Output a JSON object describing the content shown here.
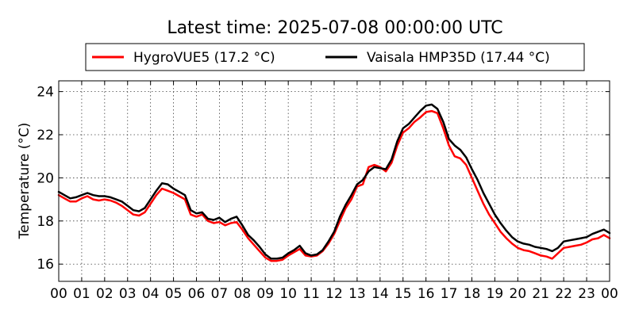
{
  "chart_data": {
    "type": "line",
    "title": "Latest time: 2025-07-08 00:00:00 UTC",
    "xlabel": "",
    "ylabel": "Temperature (°C)",
    "xlim": [
      0,
      24
    ],
    "ylim": [
      15.2,
      24.5
    ],
    "grid": true,
    "legend_position": "top-center",
    "x_ticks": [
      0,
      1,
      2,
      3,
      4,
      5,
      6,
      7,
      8,
      9,
      10,
      11,
      12,
      13,
      14,
      15,
      16,
      17,
      18,
      19,
      20,
      21,
      22,
      23,
      24
    ],
    "x_tick_labels": [
      "00",
      "01",
      "02",
      "03",
      "04",
      "05",
      "06",
      "07",
      "08",
      "09",
      "10",
      "11",
      "12",
      "13",
      "14",
      "15",
      "16",
      "17",
      "18",
      "19",
      "20",
      "21",
      "22",
      "23",
      "00"
    ],
    "y_ticks": [
      16,
      18,
      20,
      22,
      24
    ],
    "y_tick_labels": [
      "16",
      "18",
      "20",
      "22",
      "24"
    ],
    "x": [
      0,
      0.25,
      0.5,
      0.75,
      1,
      1.25,
      1.5,
      1.75,
      2,
      2.25,
      2.5,
      2.75,
      3,
      3.25,
      3.5,
      3.75,
      4,
      4.25,
      4.5,
      4.75,
      5,
      5.25,
      5.5,
      5.75,
      6,
      6.25,
      6.5,
      6.75,
      7,
      7.25,
      7.5,
      7.75,
      8,
      8.25,
      8.5,
      8.75,
      9,
      9.25,
      9.5,
      9.75,
      10,
      10.25,
      10.5,
      10.75,
      11,
      11.25,
      11.5,
      11.75,
      12,
      12.25,
      12.5,
      12.75,
      13,
      13.25,
      13.5,
      13.75,
      14,
      14.25,
      14.5,
      14.75,
      15,
      15.25,
      15.5,
      15.75,
      16,
      16.25,
      16.5,
      16.75,
      17,
      17.25,
      17.5,
      17.75,
      18,
      18.25,
      18.5,
      18.75,
      19,
      19.25,
      19.5,
      19.75,
      20,
      20.25,
      20.5,
      20.75,
      21,
      21.25,
      21.5,
      21.75,
      22,
      22.25,
      22.5,
      22.75,
      23,
      23.25,
      23.5,
      23.75,
      24
    ],
    "series": [
      {
        "name": "HygroVUE5 (17.2 °C)",
        "color": "#ff0000",
        "values": [
          19.2,
          19.05,
          18.9,
          18.9,
          19.05,
          19.15,
          19.0,
          18.95,
          19.0,
          18.95,
          18.85,
          18.7,
          18.5,
          18.3,
          18.25,
          18.4,
          18.8,
          19.2,
          19.5,
          19.4,
          19.3,
          19.15,
          19.0,
          18.3,
          18.2,
          18.3,
          18.0,
          17.9,
          17.95,
          17.8,
          17.9,
          17.95,
          17.6,
          17.2,
          16.9,
          16.6,
          16.3,
          16.15,
          16.15,
          16.2,
          16.4,
          16.55,
          16.7,
          16.4,
          16.35,
          16.4,
          16.6,
          16.95,
          17.4,
          18.0,
          18.6,
          19.0,
          19.6,
          19.7,
          20.5,
          20.6,
          20.5,
          20.3,
          20.7,
          21.5,
          22.1,
          22.3,
          22.6,
          22.8,
          23.05,
          23.1,
          23.0,
          22.3,
          21.5,
          21.0,
          20.9,
          20.6,
          20.0,
          19.4,
          18.8,
          18.3,
          17.9,
          17.5,
          17.2,
          16.95,
          16.75,
          16.65,
          16.6,
          16.5,
          16.4,
          16.35,
          16.25,
          16.5,
          16.75,
          16.8,
          16.85,
          16.9,
          17.0,
          17.15,
          17.2,
          17.35,
          17.2
        ]
      },
      {
        "name": "Vaisala HMP35D (17.44 °C)",
        "color": "#000000",
        "values": [
          19.35,
          19.2,
          19.05,
          19.1,
          19.2,
          19.3,
          19.2,
          19.15,
          19.15,
          19.1,
          19.0,
          18.9,
          18.7,
          18.5,
          18.45,
          18.6,
          19.0,
          19.4,
          19.75,
          19.7,
          19.5,
          19.35,
          19.2,
          18.5,
          18.35,
          18.4,
          18.1,
          18.05,
          18.15,
          17.95,
          18.1,
          18.2,
          17.8,
          17.35,
          17.1,
          16.8,
          16.45,
          16.25,
          16.25,
          16.3,
          16.5,
          16.65,
          16.85,
          16.5,
          16.4,
          16.45,
          16.65,
          17.05,
          17.5,
          18.2,
          18.75,
          19.2,
          19.7,
          19.9,
          20.3,
          20.5,
          20.45,
          20.4,
          20.85,
          21.7,
          22.3,
          22.5,
          22.8,
          23.1,
          23.35,
          23.4,
          23.2,
          22.6,
          21.8,
          21.5,
          21.3,
          20.95,
          20.4,
          19.9,
          19.3,
          18.8,
          18.3,
          17.9,
          17.55,
          17.25,
          17.05,
          16.95,
          16.9,
          16.8,
          16.75,
          16.7,
          16.6,
          16.75,
          17.05,
          17.1,
          17.15,
          17.2,
          17.25,
          17.4,
          17.5,
          17.6,
          17.44
        ]
      }
    ]
  }
}
